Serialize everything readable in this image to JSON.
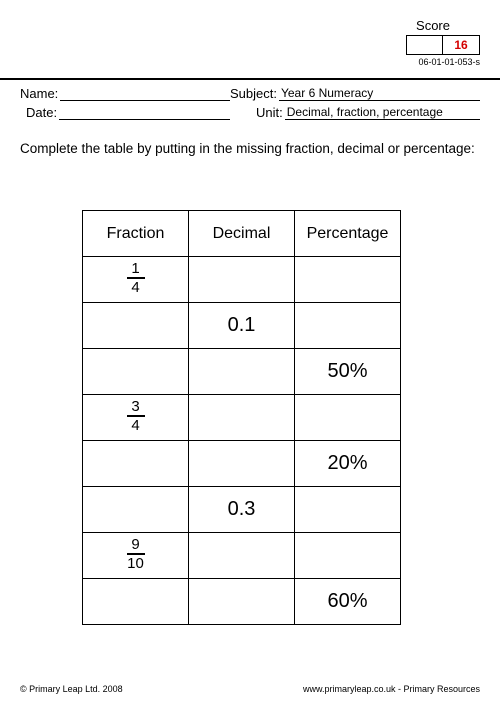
{
  "score": {
    "label": "Score",
    "value": "16"
  },
  "doc_id": "06-01-01-053-s",
  "fields": {
    "name_label": "Name:",
    "name_value": "",
    "date_label": "Date:",
    "date_value": "",
    "subject_label": "Subject:",
    "subject_value": " Year 6 Numeracy",
    "unit_label": "Unit:",
    "unit_value": " Decimal, fraction, percentage"
  },
  "instructions": "Complete the table by putting in the missing fraction, decimal or percentage:",
  "table": {
    "headers": {
      "col1": "Fraction",
      "col2": "Decimal",
      "col3": "Percentage"
    },
    "rows": [
      {
        "fraction_num": "1",
        "fraction_den": "4",
        "decimal": "",
        "percentage": ""
      },
      {
        "fraction_num": "",
        "fraction_den": "",
        "decimal": "0.1",
        "percentage": ""
      },
      {
        "fraction_num": "",
        "fraction_den": "",
        "decimal": "",
        "percentage": "50%"
      },
      {
        "fraction_num": "3",
        "fraction_den": "4",
        "decimal": "",
        "percentage": ""
      },
      {
        "fraction_num": "",
        "fraction_den": "",
        "decimal": "",
        "percentage": "20%"
      },
      {
        "fraction_num": "",
        "fraction_den": "",
        "decimal": "0.3",
        "percentage": ""
      },
      {
        "fraction_num": "9",
        "fraction_den": "10",
        "decimal": "",
        "percentage": ""
      },
      {
        "fraction_num": "",
        "fraction_den": "",
        "decimal": "",
        "percentage": "60%"
      }
    ]
  },
  "footer": {
    "left": "© Primary Leap Ltd. 2008",
    "right": "www.primaryleap.co.uk  -  Primary Resources"
  }
}
